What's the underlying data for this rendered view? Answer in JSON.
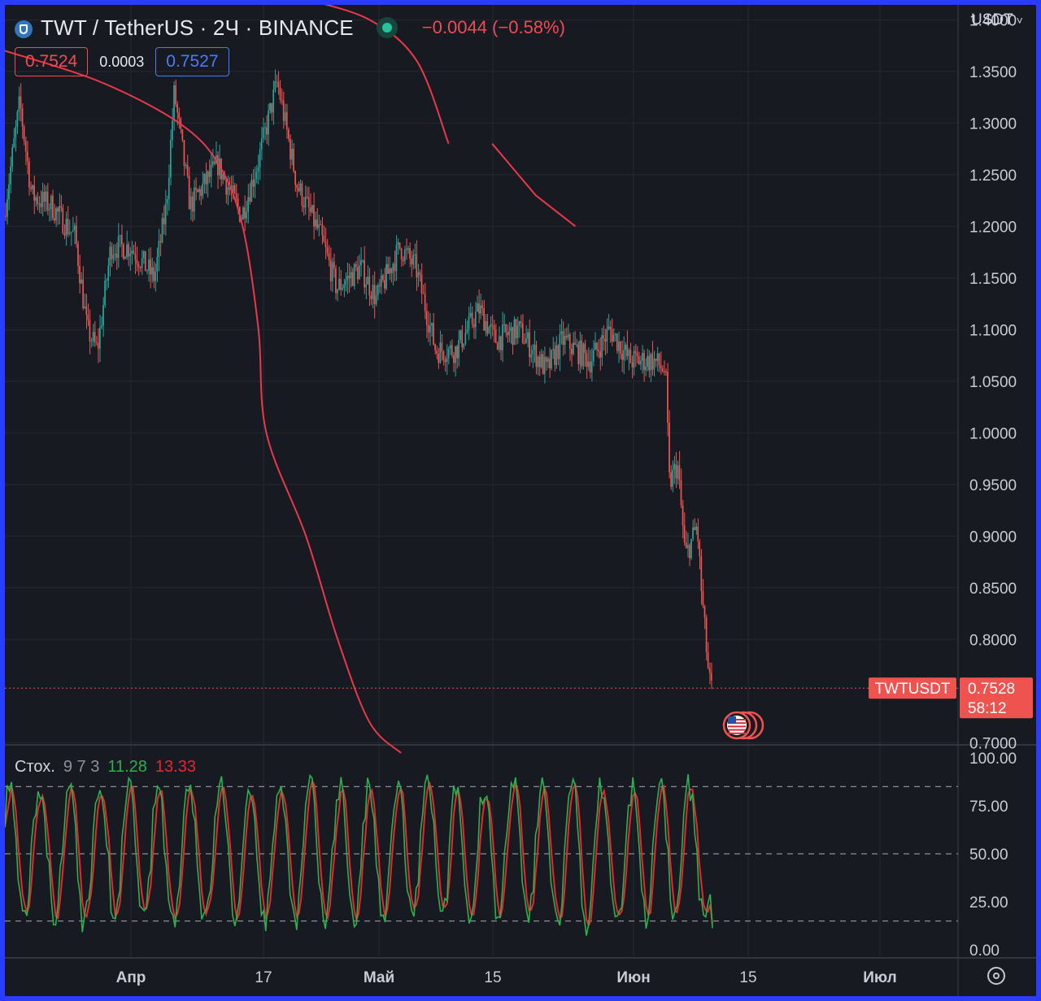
{
  "header": {
    "symbol_title": "TWT / TetherUS · 2Ч · BINANCE",
    "change": "−0.0044 (−0.58%)",
    "sell_price": "0.7524",
    "spread": "0.0003",
    "buy_price": "0.7527",
    "currency": "USDT"
  },
  "colors": {
    "background": "#181a22",
    "frame": "#2a3cff",
    "up": "#26a69a",
    "down": "#ef5350",
    "channel": "#e8394a",
    "k_line": "#2bb14f",
    "d_line": "#e8262e"
  },
  "price_label": {
    "symbol": "TWTUSDT",
    "price": "0.7528",
    "countdown": "58:12"
  },
  "stoch_legend": {
    "name": "Стох.",
    "params": "9 7 3",
    "k": "11.28",
    "d": "13.33"
  },
  "chart_data": [
    {
      "type": "candlestick",
      "y_ticks": [
        "1.4000",
        "1.3500",
        "1.3000",
        "1.2500",
        "1.2000",
        "1.1500",
        "1.1000",
        "1.0500",
        "1.0000",
        "0.9500",
        "0.9000",
        "0.8500",
        "0.8000",
        "0.7000"
      ],
      "ylim": [
        0.69,
        1.405
      ],
      "x_ticks": [
        "Апр",
        "17",
        "Май",
        "15",
        "Июн",
        "15",
        "Июл"
      ],
      "last_price": 0.7528,
      "close_path": [
        [
          0,
          1.21
        ],
        [
          0.02,
          1.32
        ],
        [
          0.035,
          1.23
        ],
        [
          0.06,
          1.22
        ],
        [
          0.09,
          1.19
        ],
        [
          0.105,
          1.1
        ],
        [
          0.118,
          1.08
        ],
        [
          0.135,
          1.18
        ],
        [
          0.16,
          1.18
        ],
        [
          0.19,
          1.15
        ],
        [
          0.205,
          1.22
        ],
        [
          0.215,
          1.33
        ],
        [
          0.235,
          1.22
        ],
        [
          0.27,
          1.26
        ],
        [
          0.3,
          1.21
        ],
        [
          0.32,
          1.26
        ],
        [
          0.345,
          1.34
        ],
        [
          0.37,
          1.24
        ],
        [
          0.4,
          1.19
        ],
        [
          0.42,
          1.14
        ],
        [
          0.45,
          1.16
        ],
        [
          0.47,
          1.13
        ],
        [
          0.5,
          1.18
        ],
        [
          0.52,
          1.16
        ],
        [
          0.545,
          1.08
        ],
        [
          0.57,
          1.08
        ],
        [
          0.6,
          1.12
        ],
        [
          0.62,
          1.09
        ],
        [
          0.65,
          1.1
        ],
        [
          0.685,
          1.06
        ],
        [
          0.705,
          1.09
        ],
        [
          0.74,
          1.07
        ],
        [
          0.765,
          1.1
        ],
        [
          0.79,
          1.07
        ],
        [
          0.82,
          1.07
        ],
        [
          0.835,
          1.06
        ],
        [
          0.84,
          0.95
        ],
        [
          0.85,
          0.97
        ],
        [
          0.86,
          0.88
        ],
        [
          0.875,
          0.91
        ],
        [
          0.88,
          0.85
        ],
        [
          0.89,
          0.76
        ],
        [
          0.893,
          0.7528
        ]
      ],
      "upper_curve": [
        [
          0.38,
          1.42
        ],
        [
          0.46,
          1.4
        ],
        [
          0.52,
          1.36
        ],
        [
          0.56,
          1.28
        ]
      ],
      "upper_curve_2": [
        [
          0.615,
          1.28
        ],
        [
          0.67,
          1.23
        ],
        [
          0.72,
          1.2
        ]
      ],
      "lower_curve": [
        [
          0.0,
          1.37
        ],
        [
          0.12,
          1.34
        ],
        [
          0.22,
          1.3
        ],
        [
          0.27,
          1.26
        ],
        [
          0.3,
          1.2
        ],
        [
          0.32,
          1.1
        ],
        [
          0.33,
          1.0
        ],
        [
          0.38,
          0.9
        ],
        [
          0.42,
          0.8
        ],
        [
          0.46,
          0.72
        ],
        [
          0.5,
          0.69
        ]
      ]
    },
    {
      "type": "line",
      "name": "Стох.",
      "ylim": [
        0,
        100
      ],
      "y_ticks": [
        "100.00",
        "75.00",
        "50.00",
        "25.00",
        "0.00"
      ],
      "bands": [
        85,
        50,
        15
      ],
      "k_last": 11.28,
      "d_last": 13.33
    }
  ]
}
